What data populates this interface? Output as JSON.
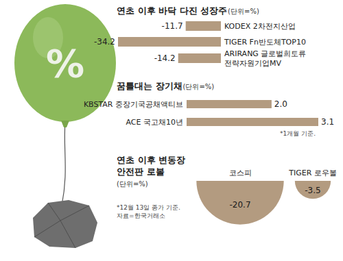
{
  "illustration": {
    "symbol": "%"
  },
  "chart_data": [
    {
      "type": "bar",
      "orientation": "horizontal",
      "title": "연초 이후 바닥 다진 성장주",
      "subtitle": "(단위=%)",
      "categories": [
        "KODEX 2차전지산업",
        "TIGER Fn반도체TOP10",
        "ARIRANG 글로벌희토류\n전략자원기업MV"
      ],
      "values": [
        -11.7,
        -34.2,
        -14.2
      ],
      "color": "#b39b80",
      "data_labels": true,
      "tick_labels": false,
      "grid": false
    },
    {
      "type": "bar",
      "orientation": "horizontal",
      "title": "꿈틀대는 장기채",
      "subtitle": "(단위=%)",
      "categories": [
        "KBSTAR 중장기국공채액티브",
        "ACE 국고채10년"
      ],
      "values": [
        2.0,
        3.1
      ],
      "value_labels": [
        "2.0",
        "3.1"
      ],
      "color": "#b39b80",
      "data_labels": true,
      "tick_labels": false,
      "grid": false,
      "annotations": [
        "*1개월 기준."
      ]
    },
    {
      "type": "semicircle",
      "title": "연초 이후 변동장\n안전판 로볼",
      "subtitle": "(단위=%)",
      "categories": [
        "코스피",
        "TIGER 로우볼"
      ],
      "values": [
        -20.7,
        -3.5
      ],
      "color": "#b39b80",
      "data_labels": true,
      "tick_labels": false,
      "grid": false,
      "annotations": [
        "*12월 13일 종가 기준.",
        "자료=한국거래소"
      ]
    }
  ]
}
